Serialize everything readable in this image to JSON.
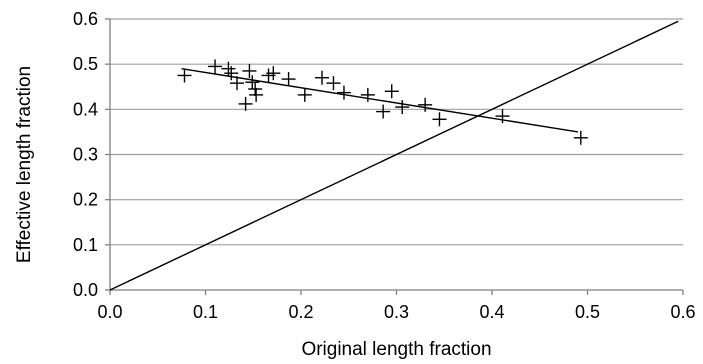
{
  "chart_data": {
    "type": "scatter",
    "title": "",
    "xlabel": "Original length fraction",
    "ylabel": "Effective length fraction",
    "xlim": [
      0,
      0.6
    ],
    "ylim": [
      0,
      0.6
    ],
    "x_ticks": [
      "0.0",
      "0.1",
      "0.2",
      "0.3",
      "0.4",
      "0.5",
      "0.6"
    ],
    "y_ticks": [
      "0.0",
      "0.1",
      "0.2",
      "0.3",
      "0.4",
      "0.5",
      "0.6"
    ],
    "grid": "horizontal",
    "legend": "none",
    "marker": "plus",
    "series": [
      {
        "points": [
          [
            0.078,
            0.475
          ],
          [
            0.11,
            0.495
          ],
          [
            0.124,
            0.49
          ],
          [
            0.127,
            0.48
          ],
          [
            0.133,
            0.458
          ],
          [
            0.142,
            0.412
          ],
          [
            0.146,
            0.485
          ],
          [
            0.149,
            0.46
          ],
          [
            0.152,
            0.445
          ],
          [
            0.153,
            0.432
          ],
          [
            0.166,
            0.475
          ],
          [
            0.171,
            0.48
          ],
          [
            0.187,
            0.467
          ],
          [
            0.204,
            0.432
          ],
          [
            0.222,
            0.47
          ],
          [
            0.234,
            0.458
          ],
          [
            0.245,
            0.437
          ],
          [
            0.27,
            0.432
          ],
          [
            0.286,
            0.395
          ],
          [
            0.295,
            0.44
          ],
          [
            0.306,
            0.405
          ],
          [
            0.33,
            0.41
          ],
          [
            0.345,
            0.378
          ],
          [
            0.411,
            0.385
          ],
          [
            0.493,
            0.337
          ]
        ]
      }
    ],
    "lines": [
      {
        "x": [
          0.075,
          0.49
        ],
        "y": [
          0.49,
          0.35
        ]
      },
      {
        "x": [
          0.0,
          0.595
        ],
        "y": [
          0.0,
          0.595
        ]
      }
    ],
    "colors": {
      "marks": "#000000",
      "grid": "#a0a0a0",
      "axis": "#808080"
    }
  }
}
